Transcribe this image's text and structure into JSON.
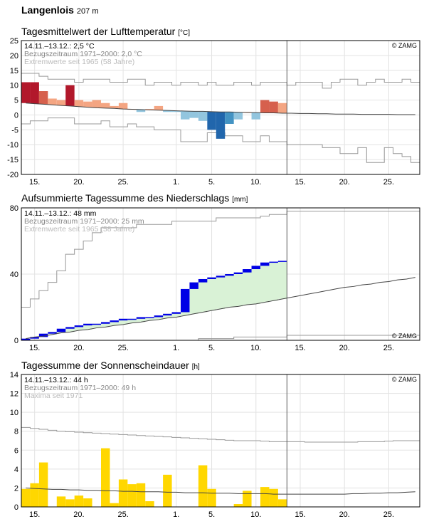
{
  "station": {
    "name": "Langenlois",
    "elevation": "207 m"
  },
  "copyright": "© ZAMG",
  "x_ticks": [
    "15.",
    "20.",
    "25.",
    "1.",
    "5.",
    "10.",
    "15.",
    "20.",
    "25."
  ],
  "panels": [
    {
      "title": "Tagesmittelwert der Lufttemperatur",
      "unit": "[°C]",
      "info": [
        "14.11.–13.12.: 2,5 °C",
        "Bezugszeitraum 1971–2000: 2,0 °C",
        "Extremwerte seit 1965 (58 Jahre)"
      ]
    },
    {
      "title": "Aufsummierte Tagessumme des Niederschlags",
      "unit": "[mm]",
      "info": [
        "14.11.–13.12.: 48 mm",
        "Bezugszeitraum 1971–2000: 25 mm",
        "Extremwerte seit 1965 (58 Jahre)"
      ]
    },
    {
      "title": "Tagessumme der Sonnenscheindauer",
      "unit": "[h]",
      "info": [
        "14.11.–13.12.: 44 h",
        "Bezugszeitraum 1971–2000: 49 h",
        "Maxima seit 1971"
      ]
    }
  ],
  "colors": {
    "temp_warm": "#f4a582",
    "temp_warmer": "#d6604d",
    "temp_warmest": "#b2182b",
    "temp_cold": "#92c5de",
    "temp_colder": "#4393c3",
    "temp_coldest": "#2166ac",
    "precip_above": "#0000e6",
    "precip_area": "#d9f2d6",
    "precip_mid": "#9fdc9a",
    "sun": "#ffd700",
    "normal_line": "#444444",
    "extreme_line": "#999999",
    "grid": "#e3e3e3",
    "today_line": "#555555"
  },
  "chart_data": [
    {
      "type": "bar",
      "name": "temperature",
      "x_days": [
        "14.11.",
        "15.11.",
        "16.11.",
        "17.11.",
        "18.11.",
        "19.11.",
        "20.11.",
        "21.11.",
        "22.11.",
        "23.11.",
        "24.11.",
        "25.11.",
        "26.11.",
        "27.11.",
        "28.11.",
        "29.11.",
        "30.11.",
        "1.12.",
        "2.12.",
        "3.12.",
        "4.12.",
        "5.12.",
        "6.12.",
        "7.12.",
        "8.12.",
        "9.12.",
        "10.12.",
        "11.12.",
        "12.12.",
        "13.12."
      ],
      "values": [
        11,
        11,
        8,
        5.5,
        5,
        10,
        5,
        4.5,
        5,
        4,
        3,
        4,
        2,
        1,
        2,
        3,
        1,
        1,
        -1.5,
        -1,
        -2,
        -5,
        -8,
        -3,
        -1.5,
        1,
        -1.5,
        5,
        4.5,
        4
      ],
      "normal": [
        4,
        3.8,
        3.6,
        3.4,
        3.2,
        3,
        2.8,
        2.6,
        2.4,
        2.3,
        2.2,
        2,
        1.9,
        1.8,
        1.7,
        1.6,
        1.5,
        1.4,
        1.3,
        1.2,
        1.2,
        1.1,
        1,
        1,
        0.9,
        0.8,
        0.8,
        0.7,
        0.7,
        0.6,
        0.6,
        0.5,
        0.5,
        0.4,
        0.4,
        0.3,
        0.3,
        0.3,
        0.2,
        0.2,
        0.2,
        0.2,
        0.1,
        0.1,
        0.1
      ],
      "max": [
        14,
        14,
        13,
        12,
        12,
        12,
        11,
        12,
        12,
        12,
        11,
        11,
        12,
        12,
        10,
        11,
        11,
        10,
        11,
        11,
        10,
        11,
        10,
        10,
        11,
        11,
        10,
        11,
        11,
        11,
        10,
        11,
        11,
        11,
        9,
        11,
        12,
        12,
        10,
        11,
        12,
        11,
        11,
        12,
        11
      ],
      "min": [
        -3,
        -2,
        -2,
        -1,
        -1,
        -1,
        -3,
        -3,
        -3,
        -2,
        -4,
        -4,
        -3,
        -4,
        -4,
        -5,
        -5,
        -5,
        -9,
        -9,
        -9,
        -6,
        -6,
        -7,
        -7,
        -9,
        -9,
        -7,
        -9,
        -9,
        -10,
        -10,
        -10,
        -10,
        -11,
        -11,
        -13,
        -13,
        -11,
        -16,
        -16,
        -11,
        -13,
        -14,
        -16
      ],
      "ylim": [
        -20,
        25
      ],
      "yticks": [
        -20,
        -15,
        -10,
        -5,
        0,
        5,
        10,
        15,
        20,
        25
      ]
    },
    {
      "type": "area",
      "name": "precipitation",
      "x_days": [
        "14.11.",
        "15.11.",
        "16.11.",
        "17.11.",
        "18.11.",
        "19.11.",
        "20.11.",
        "21.11.",
        "22.11.",
        "23.11.",
        "24.11.",
        "25.11.",
        "26.11.",
        "27.11.",
        "28.11.",
        "29.11.",
        "30.11.",
        "1.12.",
        "2.12.",
        "3.12.",
        "4.12.",
        "5.12.",
        "6.12.",
        "7.12.",
        "8.12.",
        "9.12.",
        "10.12.",
        "11.12.",
        "12.12.",
        "13.12."
      ],
      "values": [
        1,
        2,
        4,
        5,
        7,
        8,
        9,
        10,
        10,
        11,
        12,
        13,
        13,
        14,
        14,
        15,
        16,
        17,
        31,
        35,
        37,
        38,
        39,
        40,
        41,
        43,
        45,
        47,
        47.5,
        48
      ],
      "normal": [
        1,
        2,
        2.5,
        3.5,
        4.5,
        5,
        6,
        6.5,
        7.5,
        8,
        9,
        9.5,
        10.5,
        11,
        12,
        12.5,
        13.5,
        14,
        15,
        16,
        17,
        18,
        19,
        20,
        20.5,
        21.5,
        22,
        23,
        24,
        25,
        26,
        27,
        28,
        29,
        30,
        31,
        32,
        32.5,
        33.5,
        34,
        35,
        35.5,
        36.5,
        37,
        38
      ],
      "max": [
        20,
        25,
        30,
        35,
        42,
        52,
        55,
        60,
        65,
        68,
        68,
        68,
        68,
        70,
        70,
        70,
        70,
        72,
        72,
        72,
        72,
        72,
        74,
        74,
        74,
        74,
        74,
        75,
        76,
        76,
        78,
        78,
        78,
        78,
        78,
        78,
        78,
        78,
        78,
        78,
        78,
        78,
        78,
        78,
        78
      ],
      "min": [
        0,
        0,
        0,
        0,
        0,
        0,
        0,
        0,
        0,
        0,
        0,
        0,
        0,
        0,
        0,
        0,
        0,
        0,
        0,
        0,
        1,
        1,
        1,
        1,
        2,
        2,
        2,
        2,
        2,
        2,
        3,
        3,
        3,
        3,
        3,
        3,
        3,
        3,
        3,
        3,
        3,
        3,
        3,
        3,
        3
      ],
      "ylim": [
        0,
        80
      ],
      "yticks": [
        0,
        40,
        80
      ]
    },
    {
      "type": "bar",
      "name": "sunshine",
      "x_days": [
        "14.11.",
        "15.11.",
        "16.11.",
        "17.11.",
        "18.11.",
        "19.11.",
        "20.11.",
        "21.11.",
        "22.11.",
        "23.11.",
        "24.11.",
        "25.11.",
        "26.11.",
        "27.11.",
        "28.11.",
        "29.11.",
        "30.11.",
        "1.12.",
        "2.12.",
        "3.12.",
        "4.12.",
        "5.12.",
        "6.12.",
        "7.12.",
        "8.12.",
        "9.12.",
        "10.12.",
        "11.12.",
        "12.12.",
        "13.12."
      ],
      "values": [
        1.9,
        2.5,
        4.7,
        0,
        1.1,
        0.8,
        1.2,
        0.9,
        0,
        6.2,
        0.4,
        2.9,
        2.4,
        2.5,
        0.6,
        0,
        3.4,
        0,
        0,
        0,
        4.4,
        1.9,
        0,
        0,
        0.3,
        1.7,
        0,
        2.1,
        1.9,
        0.8
      ],
      "normal": [
        2,
        1.95,
        1.9,
        1.85,
        1.85,
        1.8,
        1.8,
        1.75,
        1.75,
        1.7,
        1.7,
        1.65,
        1.65,
        1.6,
        1.6,
        1.6,
        1.55,
        1.55,
        1.5,
        1.5,
        1.5,
        1.45,
        1.45,
        1.45,
        1.4,
        1.4,
        1.4,
        1.4,
        1.35,
        1.35,
        1.35,
        1.35,
        1.35,
        1.35,
        1.35,
        1.35,
        1.35,
        1.4,
        1.4,
        1.45,
        1.45,
        1.5,
        1.5,
        1.55,
        1.6
      ],
      "max": [
        8.4,
        8.3,
        8.2,
        8.1,
        8.0,
        7.95,
        7.9,
        7.85,
        7.8,
        7.75,
        7.7,
        7.65,
        7.6,
        7.55,
        7.5,
        7.45,
        7.4,
        7.35,
        7.3,
        7.25,
        7.2,
        7.15,
        7.1,
        7.05,
        7.0,
        7.0,
        7.0,
        6.95,
        6.9,
        6.9,
        6.9,
        6.9,
        6.85,
        6.85,
        6.85,
        6.85,
        6.85,
        6.85,
        6.9,
        6.9,
        6.9,
        6.95,
        7.0,
        7.0,
        7.0
      ],
      "ylim": [
        0,
        14
      ],
      "yticks": [
        0,
        2,
        4,
        6,
        8,
        10,
        12,
        14
      ]
    }
  ]
}
